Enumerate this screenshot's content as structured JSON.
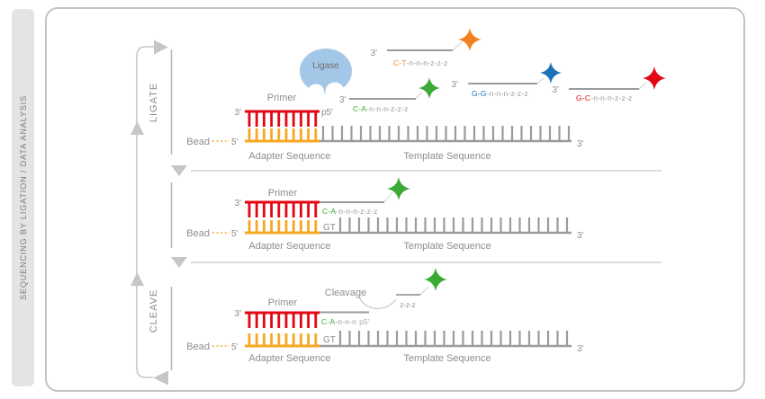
{
  "sidebar": {
    "label": "SEQUENCING BY LIGATION / DATA ANALYSIS"
  },
  "cycle": {
    "ligate": "LIGATE",
    "cleave": "CLEAVE"
  },
  "common": {
    "primer": "Primer",
    "bead": "Bead",
    "adapter": "Adapter Sequence",
    "template": "Template Sequence",
    "three_prime": "3'",
    "five_prime": "5'",
    "p5": "p5'",
    "gt": "GT"
  },
  "ligate_panel": {
    "ligase": "Ligase",
    "probe_green": {
      "end": "3'",
      "dibase": "C-A",
      "tail": "-n-n-n-z-z-z"
    },
    "probe_orange": {
      "end": "3'",
      "dibase": "C-T",
      "tail": "-n-n-n-z-z-z"
    },
    "probe_blue": {
      "end": "3'",
      "dibase": "G-G",
      "tail": "-n-n-n-z-z-z"
    },
    "probe_red": {
      "end": "3'",
      "dibase": "G-C",
      "tail": "-n-n-n-z-z-z"
    }
  },
  "extend_panel": {
    "probe": {
      "dibase": "C-A",
      "tail": "-n-n-n-z-z-z"
    }
  },
  "cleave_panel": {
    "label": "Cleavage",
    "fragment": "z-z-z",
    "probe": {
      "dibase": "C-A",
      "tail": "-n-n-n",
      "p5": "p5'"
    }
  },
  "colors": {
    "red": "#E30613",
    "orange": "#F4811F",
    "amber": "#F7A823",
    "green": "#3AAA35",
    "blue": "#1C71B8",
    "gray": "#9B9B9B",
    "ligase_fill": "#A3C7E6"
  }
}
